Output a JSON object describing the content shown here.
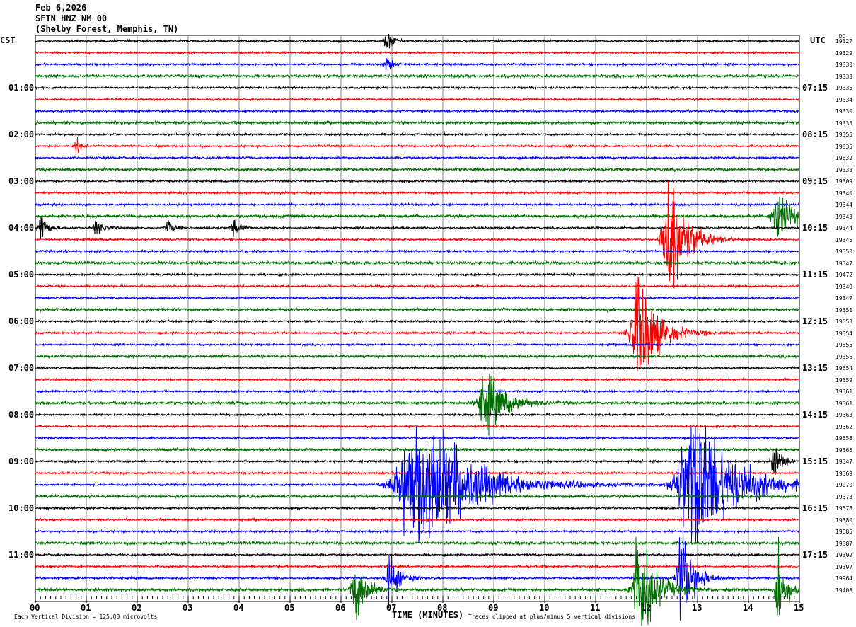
{
  "header": {
    "date": "Feb 6,2026",
    "station": "SFTN HNZ NM 00",
    "location": "(Shelby Forest, Memphis, TN)"
  },
  "chart_data": {
    "type": "line",
    "subtype": "helicorder",
    "left_axis_label": "CST",
    "right_axis_label": "UTC",
    "right_corner_label": "DC",
    "xlabel": "TIME (MINUTES)",
    "xlim": [
      0,
      15
    ],
    "x_tick_labels": [
      "00",
      "01",
      "02",
      "03",
      "04",
      "05",
      "06",
      "07",
      "08",
      "09",
      "10",
      "11",
      "12",
      "13",
      "14",
      "15"
    ],
    "trace_colors": [
      "#000000",
      "#ff0000",
      "#0000ff",
      "#007000"
    ],
    "rows_per_hour": 4,
    "minutes_per_row": 15,
    "left_hour_labels": [
      "",
      "01:00",
      "02:00",
      "03:00",
      "04:00",
      "05:00",
      "06:00",
      "07:00",
      "08:00",
      "09:00",
      "10:00",
      "11:00"
    ],
    "right_hour_labels": [
      "",
      "07:15",
      "08:15",
      "09:15",
      "10:15",
      "11:15",
      "12:15",
      "13:15",
      "14:15",
      "15:15",
      "16:15",
      "17:15"
    ],
    "dc_values": [
      "19327",
      "19329",
      "19330",
      "19333",
      "19336",
      "19334",
      "19330",
      "19335",
      "19355",
      "19335",
      "19632",
      "19338",
      "19309",
      "19340",
      "19344",
      "19343",
      "19344",
      "19345",
      "19350",
      "19347",
      "19472",
      "19349",
      "19347",
      "19351",
      "19653",
      "19354",
      "19555",
      "19356",
      "19654",
      "19359",
      "19361",
      "19361",
      "19363",
      "19362",
      "19658",
      "19365",
      "19347",
      "19369",
      "19070",
      "19373",
      "19578",
      "19380",
      "19685",
      "19387",
      "19302",
      "19397",
      "19964",
      "19408"
    ],
    "events": [
      {
        "row": 0,
        "minute": 6.9,
        "amplitude": 0.6,
        "duration": 0.4
      },
      {
        "row": 2,
        "minute": 6.9,
        "amplitude": 0.6,
        "duration": 0.3
      },
      {
        "row": 9,
        "minute": 0.8,
        "amplitude": 0.7,
        "duration": 0.2
      },
      {
        "row": 15,
        "minute": 14.6,
        "amplitude": 1.6,
        "duration": 0.8
      },
      {
        "row": 16,
        "minute": 0.1,
        "amplitude": 1.4,
        "duration": 0.3
      },
      {
        "row": 16,
        "minute": 1.2,
        "amplitude": 0.6,
        "duration": 0.4
      },
      {
        "row": 16,
        "minute": 2.6,
        "amplitude": 0.5,
        "duration": 0.3
      },
      {
        "row": 16,
        "minute": 3.9,
        "amplitude": 0.5,
        "duration": 0.4
      },
      {
        "row": 17,
        "minute": 12.45,
        "amplitude": 5,
        "duration": 0.8
      },
      {
        "row": 25,
        "minute": 11.85,
        "amplitude": 3.8,
        "duration": 1.0
      },
      {
        "row": 31,
        "minute": 8.85,
        "amplitude": 2,
        "duration": 1.0
      },
      {
        "row": 36,
        "minute": 14.5,
        "amplitude": 1.2,
        "duration": 0.4
      },
      {
        "row": 38,
        "minute": 7.55,
        "amplitude": 5,
        "duration": 2.5
      },
      {
        "row": 38,
        "minute": 12.95,
        "amplitude": 5,
        "duration": 2.0
      },
      {
        "row": 46,
        "minute": 6.95,
        "amplitude": 1.6,
        "duration": 0.5
      },
      {
        "row": 46,
        "minute": 12.7,
        "amplitude": 3.5,
        "duration": 0.6
      },
      {
        "row": 47,
        "minute": 6.3,
        "amplitude": 1.8,
        "duration": 0.6
      },
      {
        "row": 47,
        "minute": 11.85,
        "amplitude": 4,
        "duration": 0.8
      },
      {
        "row": 47,
        "minute": 14.6,
        "amplitude": 2.5,
        "duration": 0.4
      }
    ],
    "footer_scale": "Each Vertical Division =  125.00 microvolts",
    "footer_clip": "Traces clipped at plus/minus 5 vertical divisions"
  }
}
